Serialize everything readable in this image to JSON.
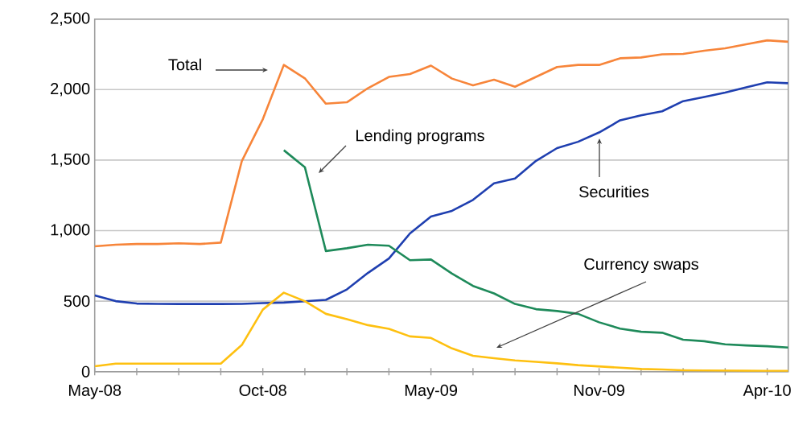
{
  "chart_data": {
    "type": "line",
    "grid": "y",
    "legend": false,
    "marker": "none",
    "line_style": "solid",
    "categories": [
      "May-08",
      null,
      null,
      null,
      null,
      null,
      null,
      null,
      "Oct-08",
      null,
      null,
      null,
      null,
      null,
      null,
      null,
      "May-09",
      null,
      null,
      null,
      null,
      null,
      null,
      null,
      "Nov-09",
      null,
      null,
      null,
      null,
      null,
      null,
      null,
      "Apr-10",
      null
    ],
    "ylim": [
      0,
      2500
    ],
    "yticks": [
      0,
      500,
      {
        "value": 1000,
        "label": "1,000"
      },
      {
        "value": 1500,
        "label": "1,500"
      },
      {
        "value": 2000,
        "label": "2,000"
      },
      {
        "value": 2500,
        "label": "2,500"
      }
    ],
    "series": [
      {
        "color": "#f7853a",
        "values": [
          889,
          900,
          905,
          905,
          910,
          905,
          915,
          1493,
          1790,
          2175,
          2080,
          1900,
          1910,
          2010,
          2090,
          2110,
          2170,
          2078,
          2030,
          2070,
          2020,
          2090,
          2160,
          2175,
          2175,
          2222,
          2228,
          2250,
          2253,
          2276,
          2293,
          2321,
          2349,
          2339
        ]
      },
      {
        "color": "#1f3fb0",
        "values": [
          541,
          500,
          483,
          481,
          480,
          480,
          480,
          481,
          486,
          490,
          499,
          509,
          583,
          700,
          802,
          980,
          1100,
          1140,
          1218,
          1335,
          1369,
          1495,
          1585,
          1630,
          1696,
          1782,
          1818,
          1846,
          1918,
          1948,
          1979,
          2016,
          2052,
          2045
        ]
      },
      {
        "color": "#1e8a5a",
        "values": [
          null,
          null,
          null,
          null,
          null,
          null,
          null,
          null,
          null,
          1570,
          1450,
          855,
          875,
          900,
          893,
          790,
          795,
          695,
          608,
          555,
          480,
          443,
          430,
          410,
          350,
          305,
          283,
          276,
          227,
          216,
          194,
          186,
          180,
          171
        ]
      },
      {
        "color": "#fec010",
        "values": [
          38,
          57,
          57,
          57,
          57,
          57,
          57,
          189,
          440,
          560,
          500,
          410,
          372,
          330,
          304,
          250,
          239,
          165,
          112,
          95,
          80,
          70,
          59,
          46,
          37,
          28,
          19,
          15,
          10,
          8,
          7,
          6,
          5,
          5
        ]
      }
    ],
    "annotations": [
      "Total",
      "Lending programs",
      "Securities",
      "Currency swaps"
    ]
  }
}
